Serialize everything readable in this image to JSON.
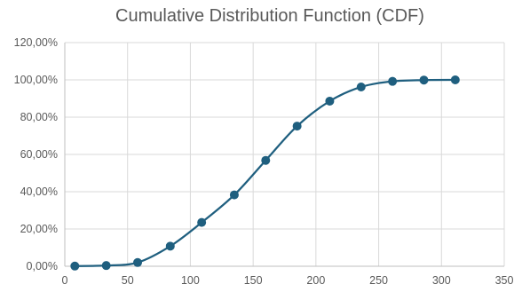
{
  "chart_data": {
    "type": "line",
    "title": "Cumulative Distribution Function (CDF)",
    "xlabel": "",
    "ylabel": "",
    "xlim": [
      0,
      350
    ],
    "ylim": [
      0,
      120
    ],
    "x_ticks": [
      0,
      50,
      100,
      150,
      200,
      250,
      300,
      350
    ],
    "x_tick_labels": [
      "0",
      "50",
      "100",
      "150",
      "200",
      "250",
      "300",
      "350"
    ],
    "y_ticks": [
      0,
      20,
      40,
      60,
      80,
      100,
      120
    ],
    "y_tick_labels": [
      "0,00%",
      "20,00%",
      "40,00%",
      "60,00%",
      "80,00%",
      "100,00%",
      "120,00%"
    ],
    "grid": true,
    "legend": "none",
    "series": [
      {
        "color": "#1f5f7f",
        "marker": "circle",
        "smooth": true,
        "x": [
          8,
          33,
          58,
          84,
          109,
          135,
          160,
          185,
          211,
          236,
          261,
          286,
          311
        ],
        "y": [
          0.1,
          0.4,
          2.0,
          10.8,
          23.5,
          38.3,
          56.8,
          75.2,
          88.6,
          96.2,
          99.2,
          99.9,
          100.0
        ]
      }
    ]
  }
}
